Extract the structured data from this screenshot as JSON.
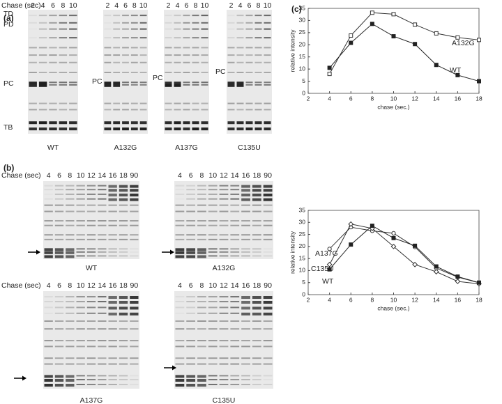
{
  "panel_a": {
    "label": "(a)",
    "axis_label": "Chase (sec)",
    "lanes": [
      "2",
      "4",
      "6",
      "8",
      "10"
    ],
    "gels": [
      {
        "name": "WT",
        "band_labels": [
          "TD",
          "PD",
          "PC",
          "TB"
        ]
      },
      {
        "name": "A132G",
        "band_labels": [
          "PC"
        ]
      },
      {
        "name": "A137G",
        "band_labels": [
          "PC"
        ]
      },
      {
        "name": "C135U",
        "band_labels": [
          "PC"
        ]
      }
    ]
  },
  "panel_b": {
    "label": "(b)",
    "axis_label": "Chase (sec)",
    "lanes": [
      "4",
      "6",
      "8",
      "10",
      "12",
      "14",
      "16",
      "18",
      "90"
    ],
    "gels": [
      {
        "name": "WT"
      },
      {
        "name": "A132G"
      },
      {
        "name": "A137G"
      },
      {
        "name": "C135U"
      }
    ]
  },
  "panel_c": {
    "label": "(c)"
  },
  "chart_data": [
    {
      "type": "line",
      "x_label": "chase (sec.)",
      "y_label": "relative intensity",
      "x": [
        4,
        6,
        8,
        10,
        12,
        14,
        16,
        18
      ],
      "series": [
        {
          "name": "A132G",
          "color": "#333333",
          "marker": "open-square",
          "values": [
            8,
            23.8,
            33.2,
            32.6,
            28.3,
            24.7,
            23,
            22
          ]
        },
        {
          "name": "WT",
          "color": "#222222",
          "marker": "filled-square",
          "values": [
            10.5,
            20.8,
            28.6,
            23.5,
            20.3,
            11.7,
            7.5,
            5
          ]
        }
      ],
      "xlim": [
        2,
        18
      ],
      "xticks": [
        2,
        4,
        6,
        8,
        10,
        12,
        14,
        16,
        18
      ],
      "ylim": [
        0,
        35
      ],
      "yticks": [
        0,
        5,
        10,
        15,
        20,
        25,
        30,
        35
      ],
      "grid": false
    },
    {
      "type": "line",
      "x_label": "chase (sec.)",
      "y_label": "relative intensity",
      "x": [
        4,
        6,
        8,
        10,
        12,
        14,
        16,
        18
      ],
      "series": [
        {
          "name": "A137G",
          "color": "#333333",
          "marker": "open-circle",
          "values": [
            19,
            28,
            26.5,
            25.5,
            19.8,
            11,
            7.3,
            4.9
          ]
        },
        {
          "name": "C135U",
          "color": "#333333",
          "marker": "open-diamond",
          "values": [
            12.5,
            29.3,
            27.5,
            20,
            12.5,
            9.5,
            5.5,
            4.5
          ]
        },
        {
          "name": "WT",
          "color": "#222222",
          "marker": "filled-square",
          "values": [
            10.5,
            20.8,
            28.6,
            23.5,
            20.3,
            11.7,
            7.5,
            5
          ]
        }
      ],
      "xlim": [
        2,
        18
      ],
      "xticks": [
        2,
        4,
        6,
        8,
        10,
        12,
        14,
        16,
        18
      ],
      "ylim": [
        0,
        35
      ],
      "yticks": [
        0,
        5,
        10,
        15,
        20,
        25,
        30,
        35
      ],
      "grid": false
    }
  ]
}
